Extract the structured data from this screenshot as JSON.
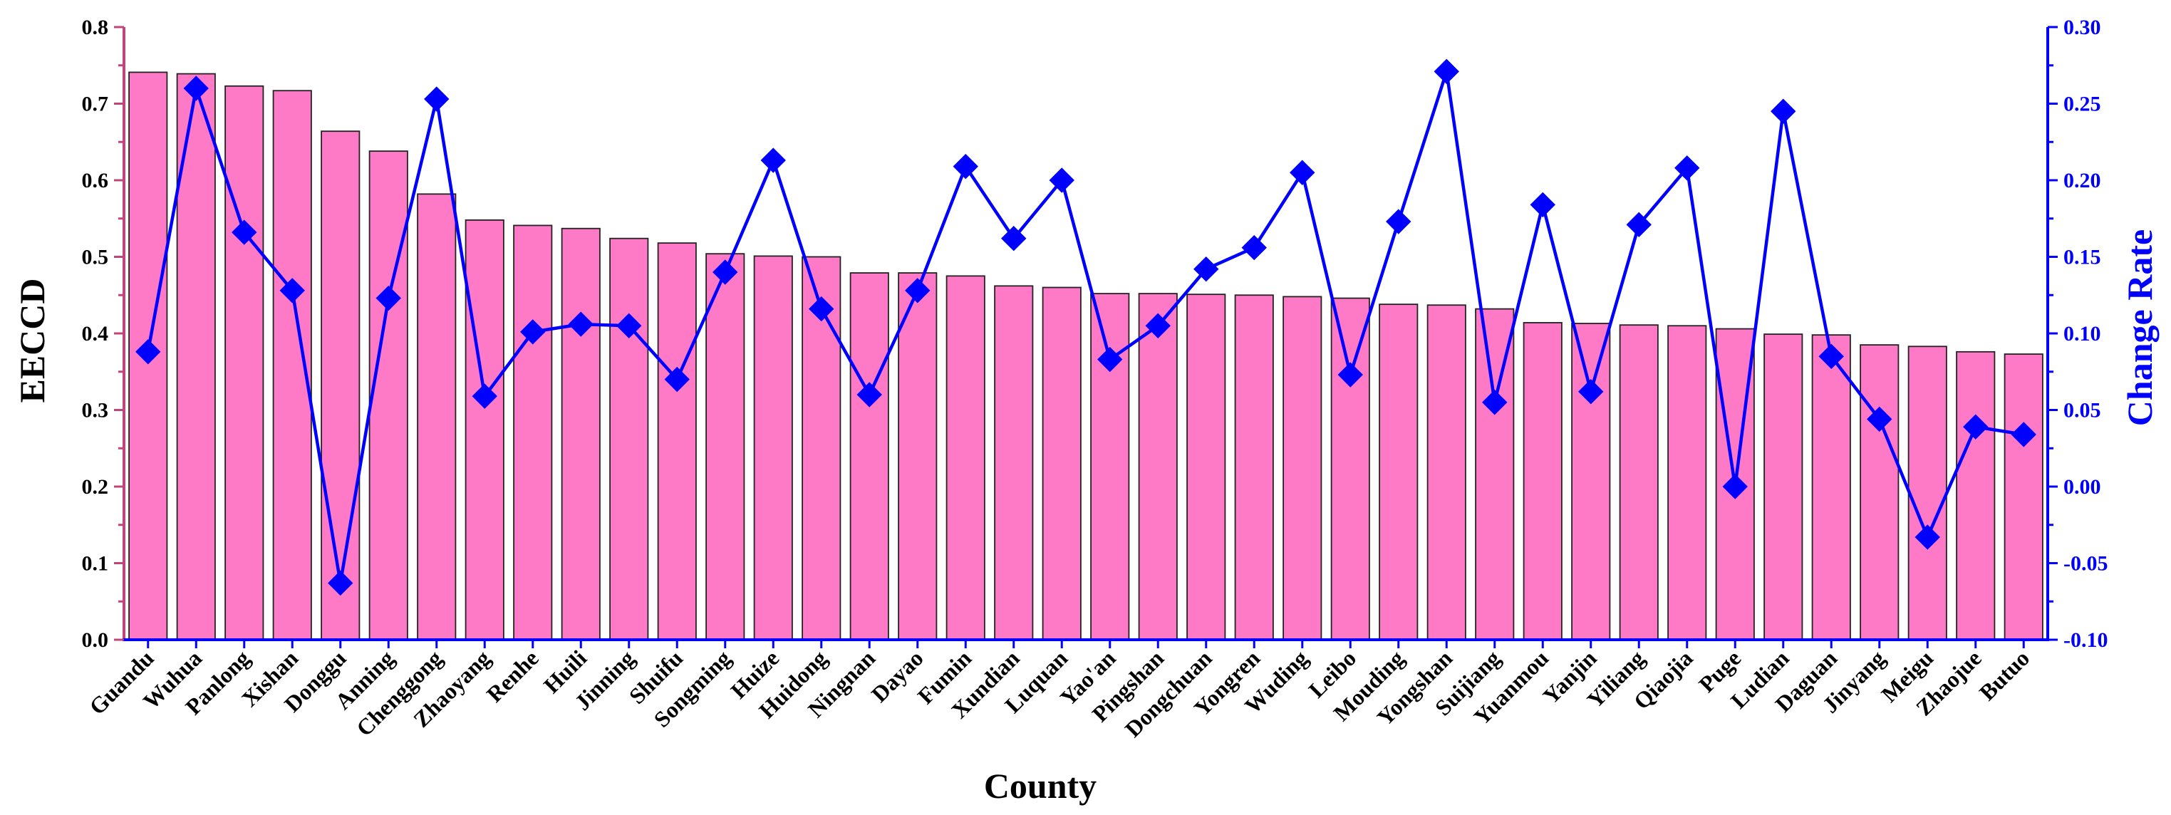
{
  "chart_data": {
    "type": "bar",
    "xlabel": "County",
    "ylabel": "EECCD",
    "y2label": "Change Rate",
    "ylim": [
      0,
      0.8
    ],
    "y2lim": [
      -0.1,
      0.3
    ],
    "yticks": [
      "0.0",
      "0.1",
      "0.2",
      "0.3",
      "0.4",
      "0.5",
      "0.6",
      "0.7",
      "0.8"
    ],
    "y2ticks": [
      "-0.10",
      "-0.05",
      "0.00",
      "0.05",
      "0.10",
      "0.15",
      "0.20",
      "0.25",
      "0.30"
    ],
    "categories": [
      "Guandu",
      "Wuhua",
      "Panlong",
      "Xishan",
      "Donggu",
      "Anning",
      "Chenggong",
      "Zhaoyang",
      "Renhe",
      "Huili",
      "Jinning",
      "Shuifu",
      "Songming",
      "Huize",
      "Huidong",
      "Ningnan",
      "Dayao",
      "Fumin",
      "Xundian",
      "Luquan",
      "Yao'an",
      "Pingshan",
      "Dongchuan",
      "Yongren",
      "Wuding",
      "Leibo",
      "Mouding",
      "Yongshan",
      "Suijiang",
      "Yuanmou",
      "Yanjin",
      "Yiliang",
      "Qiaojia",
      "Puge",
      "Ludian",
      "Daguan",
      "Jinyang",
      "Meigu",
      "Zhaojue",
      "Butuo"
    ],
    "series": [
      {
        "axis": "left",
        "kind": "bar",
        "values": [
          0.741,
          0.739,
          0.723,
          0.717,
          0.664,
          0.638,
          0.582,
          0.548,
          0.541,
          0.537,
          0.524,
          0.518,
          0.504,
          0.501,
          0.5,
          0.479,
          0.479,
          0.475,
          0.462,
          0.46,
          0.452,
          0.452,
          0.451,
          0.45,
          0.448,
          0.446,
          0.438,
          0.437,
          0.432,
          0.414,
          0.413,
          0.411,
          0.41,
          0.406,
          0.399,
          0.398,
          0.385,
          0.383,
          0.376,
          0.373
        ]
      },
      {
        "axis": "right",
        "kind": "line",
        "values": [
          0.088,
          0.26,
          0.166,
          0.128,
          -0.063,
          0.123,
          0.253,
          0.059,
          0.101,
          0.106,
          0.105,
          0.07,
          0.14,
          0.213,
          0.116,
          0.06,
          0.128,
          0.209,
          0.162,
          0.2,
          0.083,
          0.105,
          0.142,
          0.156,
          0.205,
          0.073,
          0.173,
          0.271,
          0.055,
          0.184,
          0.062,
          0.171,
          0.208,
          0.0,
          0.245,
          0.085,
          0.044,
          -0.033,
          0.039,
          0.034
        ]
      }
    ],
    "colors": {
      "bar_fill": "#ff7ac6",
      "bar_stroke": "#222222",
      "line": "#0000ff",
      "left_axis": "#c0457a",
      "right_axis": "#0000ff",
      "bottom_axis": "#0000ff",
      "text": "#000000"
    },
    "grid": false,
    "legend": "none"
  }
}
